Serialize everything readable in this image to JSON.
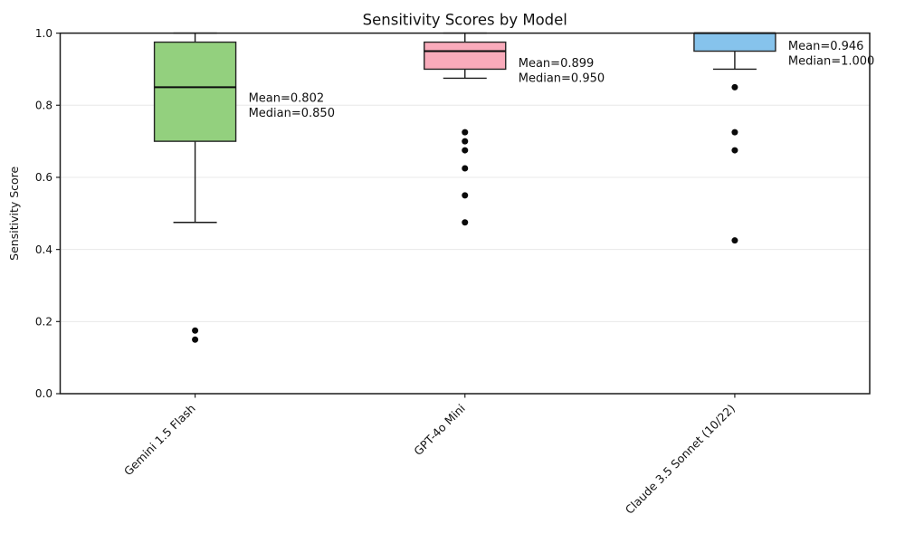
{
  "chart_data": {
    "type": "box",
    "title": "Sensitivity Scores by Model",
    "xlabel": "",
    "ylabel": "Sensitivity Score",
    "ylim": [
      0.0,
      1.0
    ],
    "ytick_labels": [
      "0.0",
      "0.2",
      "0.4",
      "0.6",
      "0.8",
      "1.0"
    ],
    "ytick_values": [
      0.0,
      0.2,
      0.4,
      0.6,
      0.8,
      1.0
    ],
    "grid": "horizontal",
    "grid_color": "#e8e8e8",
    "background_color": "#ffffff",
    "categories": [
      "Gemini 1.5 Flash",
      "GPT-4o Mini",
      "Claude 3.5 Sonnet (10/22)"
    ],
    "series": [
      {
        "label": "Gemini 1.5 Flash",
        "box_color": "#93d07e",
        "whisker_low": 0.475,
        "q1": 0.7,
        "median": 0.85,
        "q3": 0.975,
        "whisker_high": 1.0,
        "outliers": [
          0.175,
          0.15
        ],
        "mean": 0.802,
        "annotation_lines": [
          "Mean=0.802",
          "Median=0.850"
        ]
      },
      {
        "label": "GPT-4o Mini",
        "box_color": "#f9abbb",
        "whisker_low": 0.875,
        "q1": 0.9,
        "median": 0.95,
        "q3": 0.975,
        "whisker_high": 1.0,
        "outliers": [
          0.725,
          0.7,
          0.675,
          0.625,
          0.55,
          0.475
        ],
        "mean": 0.899,
        "annotation_lines": [
          "Mean=0.899",
          "Median=0.950"
        ]
      },
      {
        "label": "Claude 3.5 Sonnet (10/22)",
        "box_color": "#86c3ec",
        "whisker_low": 0.9,
        "q1": 0.95,
        "median": 1.0,
        "q3": 1.0,
        "whisker_high": 1.0,
        "outliers": [
          0.85,
          0.725,
          0.675,
          0.425
        ],
        "mean": 0.946,
        "annotation_lines": [
          "Mean=0.946",
          "Median=1.000"
        ]
      }
    ]
  }
}
